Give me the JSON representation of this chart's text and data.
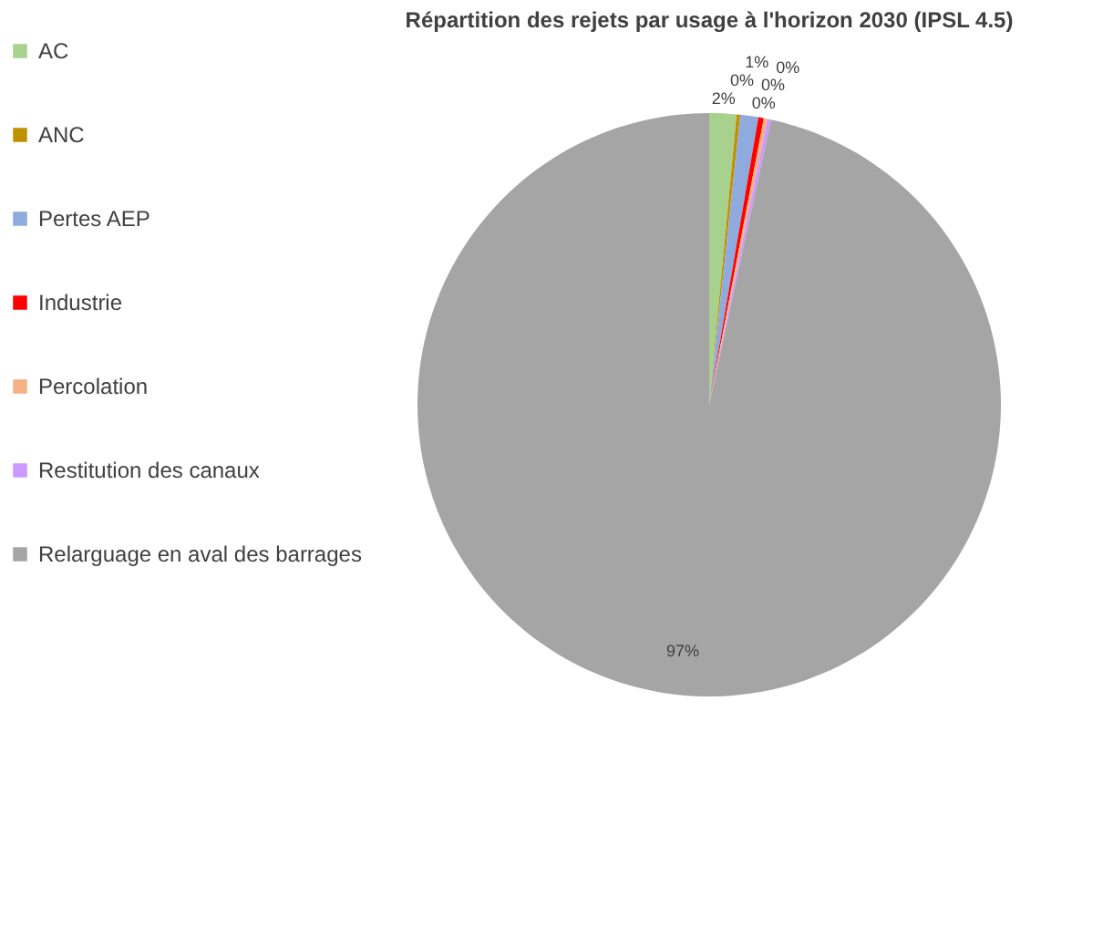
{
  "chart_data": {
    "type": "pie",
    "title": "Répartition des rejets par usage à l'horizon 2030 (IPSL 4.5)",
    "categories": [
      "AC",
      "ANC",
      "Pertes AEP",
      "Industrie",
      "Percolation",
      "Restitution des canaux",
      "Relarguage en aval des barrages"
    ],
    "values": [
      1.5,
      0.2,
      1.0,
      0.3,
      0.2,
      0.2,
      96.6
    ],
    "value_labels": [
      "2%",
      "0%",
      "1%",
      "0%",
      "0%",
      "0%",
      "97%"
    ],
    "colors": [
      "#a9d18e",
      "#bf9000",
      "#8faadc",
      "#ff0000",
      "#f4b183",
      "#cc99ff",
      "#a5a5a5"
    ],
    "legend": "left"
  }
}
